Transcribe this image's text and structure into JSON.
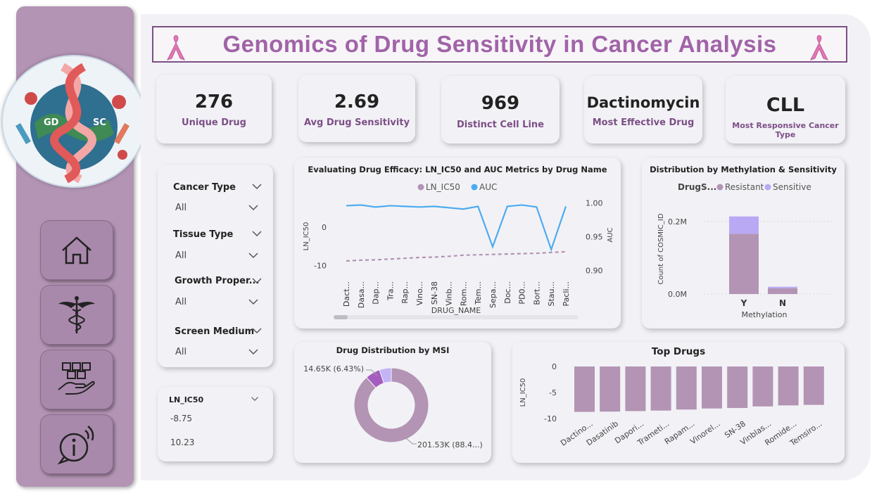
{
  "header": {
    "title": "Genomics of Drug Sensitivity in Cancer Analysis"
  },
  "logo": {
    "left_text": "GD",
    "right_text": "SC"
  },
  "nav": [
    {
      "icon": "home-icon"
    },
    {
      "icon": "caduceus-icon"
    },
    {
      "icon": "hand-boxes-icon"
    },
    {
      "icon": "info-icon"
    }
  ],
  "kpis": {
    "unique_drug": {
      "value": "276",
      "label": "Unique Drug"
    },
    "avg_sensitivity": {
      "value": "2.69",
      "label": "Avg Drug Sensitivity"
    },
    "distinct_cell_line": {
      "value": "969",
      "label": "Distinct Cell Line"
    },
    "most_effective_drug": {
      "value": "Dactinomycin",
      "label": "Most Effective Drug"
    },
    "most_responsive_cancer": {
      "value": "CLL",
      "label": "Most Responsive Cancer Type"
    }
  },
  "filters": [
    {
      "title": "Cancer Type",
      "value": "All"
    },
    {
      "title": "Tissue Type",
      "value": "All"
    },
    {
      "title": "Growth Proper...",
      "value": "All"
    },
    {
      "title": "Screen Medium",
      "value": "All"
    }
  ],
  "range_slicer": {
    "title": "LN_IC50",
    "min": "-8.75",
    "max": "10.23"
  },
  "colors": {
    "ln_ic50": "#b394b4",
    "auc": "#4dabf0",
    "resistant": "#b394b4",
    "sensitive": "#b9a9f5",
    "title": "#a163a8"
  },
  "chart_data": [
    {
      "type": "line",
      "title": "Evaluating Drug Efficacy: LN_IC50 and AUC Metrics by Drug Name",
      "xlabel": "DRUG_NAME",
      "ylabel": "LN_IC50",
      "y2label": "AUC",
      "categories": [
        "Dact...",
        "Dasa...",
        "Dap...",
        "Tra...",
        "Rap...",
        "Vino...",
        "SN-38",
        "Vinb...",
        "Rom...",
        "Tem...",
        "Sepa...",
        "Doc...",
        "PD0...",
        "Bort...",
        "Stau...",
        "Pacli..."
      ],
      "series": [
        {
          "name": "LN_IC50",
          "axis": "left",
          "style": "dashed",
          "values": [
            -8.8,
            -8.6,
            -8.5,
            -8.3,
            -8.1,
            -7.9,
            -7.8,
            -7.6,
            -7.3,
            -7.2,
            -7.1,
            -7.0,
            -6.9,
            -6.8,
            -6.6,
            -6.4
          ]
        },
        {
          "name": "AUC",
          "axis": "right",
          "style": "solid",
          "values": [
            0.996,
            0.997,
            0.994,
            0.996,
            0.995,
            0.994,
            0.995,
            0.993,
            0.991,
            0.995,
            0.935,
            0.995,
            0.997,
            0.994,
            0.931,
            0.995
          ]
        }
      ],
      "ylim": [
        -13,
        8
      ],
      "y2lim": [
        0.89,
        1.01
      ],
      "yticks": [
        "0",
        "-10"
      ],
      "y2ticks": [
        "1.00",
        "0.95",
        "0.90"
      ],
      "legend": "top"
    },
    {
      "type": "bar",
      "stacked": true,
      "title": "Distribution by Methylation & Sensitivity",
      "legend_title": "DrugS...",
      "xlabel": "Methylation",
      "ylabel": "Count of COSMIC_ID",
      "categories": [
        "Y",
        "N"
      ],
      "series": [
        {
          "name": "Resistant",
          "values": [
            166000,
            16000
          ]
        },
        {
          "name": "Sensitive",
          "values": [
            48000,
            4000
          ]
        }
      ],
      "yticks": [
        "0.2M",
        "0.0M"
      ],
      "ylim": [
        0,
        260000
      ],
      "legend": "top"
    },
    {
      "type": "pie",
      "donut": true,
      "title": "Drug Distribution by MSI",
      "slices": [
        {
          "value": 201530,
          "label": "201.53K (88.4...)",
          "color": "#b394b4"
        },
        {
          "value": 14650,
          "label": "14.65K (6.43%)",
          "color": "#a55cbf"
        },
        {
          "value": 11780,
          "label": "",
          "color": "#c3b3f7"
        }
      ]
    },
    {
      "type": "bar",
      "title": "Top Drugs",
      "ylabel": "LN_IC50",
      "categories": [
        "Dactino...",
        "Dasatinib",
        "Dapori...",
        "Trameti...",
        "Rapam...",
        "Vinorel...",
        "SN-38",
        "Vinblas...",
        "Romide...",
        "Temsiro..."
      ],
      "values": [
        -8.75,
        -8.7,
        -8.6,
        -8.5,
        -8.3,
        -8.1,
        -8.0,
        -7.7,
        -7.5,
        -7.4
      ],
      "yticks": [
        "0",
        "-5",
        "-10"
      ],
      "ylim": [
        -10.3,
        0
      ]
    }
  ]
}
